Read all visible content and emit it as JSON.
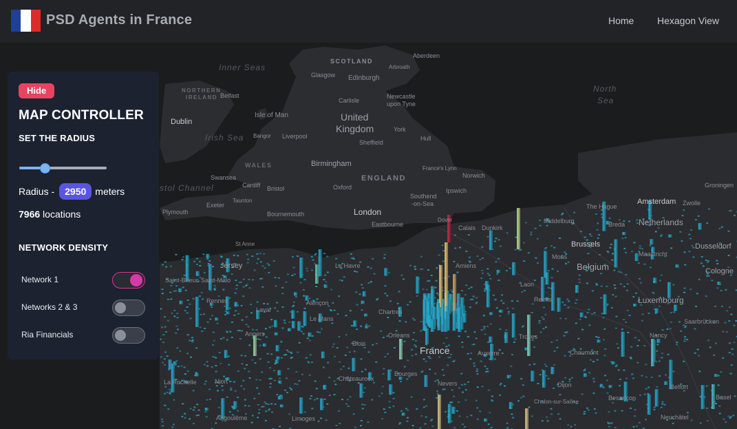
{
  "header": {
    "title": "PSD Agents in France",
    "nav": [
      {
        "label": "Home"
      },
      {
        "label": "Hexagon View"
      }
    ],
    "flag_colors": [
      "#1f3f9a",
      "#ffffff",
      "#e02a2a"
    ]
  },
  "map": {
    "places": [
      "Inner Seas",
      "Aberdeen",
      "SCOTLAND",
      "Arbroath",
      "Glasgow",
      "Edinburgh",
      "NORTHERN",
      "IRELAND",
      "Belfast",
      "Carlisle",
      "Newcastle",
      "upon Tyne",
      "North",
      "Sea",
      "Isle of Man",
      "Dublin",
      "United",
      "Kingdom",
      "York",
      "Irish Sea",
      "Bangor",
      "Liverpool",
      "Sheffield",
      "Hull",
      "WALES",
      "Birmingham",
      "France's Lynn",
      "Norwich",
      "ENGLAND",
      "Swansea",
      "Cardiff",
      "Bristol",
      "Oxford",
      "Ipswich",
      "Groningen",
      "stol Channel",
      "Taunton",
      "Southend",
      "-on-Sea",
      "The Hague",
      "Amsterdam",
      "Zwolle",
      "Exeter",
      "Plymouth",
      "Bournemouth",
      "London",
      "Eastbourne",
      "Dover",
      "Calais",
      "Dunkirk",
      "Middelburg",
      "Breda",
      "Netherlands",
      "Brussels",
      "Dusseldorf",
      "St Anne",
      "Jersey",
      "Le Havre",
      "Amiens",
      "Mons",
      "Belgium",
      "Maastricht",
      "Cologne",
      "Saint-Brieuc",
      "Saint-Malo",
      "Laon",
      "Rennes",
      "Alençon",
      "Reims",
      "Luxembourg",
      "Laval",
      "Le Mans",
      "Chartres",
      "Saarbrücken",
      "Angers",
      "Orléans",
      "Troyes",
      "Nancy",
      "Blois",
      "France",
      "Auxerre",
      "Chaumont",
      "La Rochelle",
      "Niort",
      "Châteauroux",
      "Bourges",
      "Nevers",
      "Dijon",
      "Besançon",
      "Belfort",
      "Basel",
      "Angoulême",
      "Limoges",
      "Chalon-sur-Saône",
      "Neuchâtel"
    ],
    "colors": {
      "water": "#1b1c1e",
      "land": "#2b2c2f",
      "label": "#8a8e95",
      "bar_low": "#2aa7c9",
      "bar_mid": "#e3c16f",
      "bar_high": "#c22a4a"
    }
  },
  "controller": {
    "hide_label": "Hide",
    "title": "MAP CONTROLLER",
    "radius_section": "SET THE RADIUS",
    "radius_prefix": "Radius -",
    "radius_value": "2950",
    "radius_unit": "meters",
    "slider_level": 0.29,
    "locations_count": "7966",
    "locations_label": "locations",
    "density_section": "NETWORK DENSITY",
    "networks": [
      {
        "label": "Network 1",
        "on": true
      },
      {
        "label": "Networks 2 & 3",
        "on": false
      },
      {
        "label": "Ria Financials",
        "on": false
      }
    ]
  }
}
